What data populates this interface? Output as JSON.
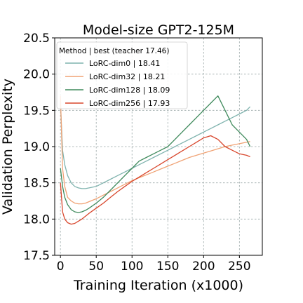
{
  "chart_data": {
    "type": "line",
    "title": "Model-size GPT2-125M",
    "xlabel": "Training Iteration (x1000)",
    "ylabel": "Validation Perplexity",
    "xlim": [
      -8,
      282
    ],
    "ylim": [
      17.5,
      20.5
    ],
    "xticks": [
      0,
      50,
      100,
      150,
      200,
      250
    ],
    "yticks": [
      17.5,
      18.0,
      18.5,
      19.0,
      19.5,
      20.0,
      20.5
    ],
    "grid": true,
    "legend": {
      "title": "Method | best (teacher 17.46)",
      "placement": "top-left"
    },
    "series": [
      {
        "name": "LoRC-dim0 | 18.41",
        "color": "#7fb3ae",
        "x": [
          0,
          3,
          6,
          10,
          15,
          20,
          25,
          30,
          35,
          40,
          50,
          60,
          70,
          80,
          90,
          100,
          110,
          120,
          130,
          140,
          150,
          160,
          170,
          180,
          190,
          200,
          210,
          220,
          230,
          240,
          250,
          260,
          265
        ],
        "y": [
          19.6,
          18.95,
          18.75,
          18.6,
          18.5,
          18.45,
          18.43,
          18.42,
          18.42,
          18.43,
          18.45,
          18.5,
          18.55,
          18.6,
          18.65,
          18.7,
          18.75,
          18.8,
          18.85,
          18.9,
          18.95,
          19.0,
          19.05,
          19.1,
          19.15,
          19.2,
          19.25,
          19.3,
          19.35,
          19.4,
          19.45,
          19.5,
          19.55
        ]
      },
      {
        "name": "LoRC-dim32 | 18.21",
        "color": "#f0a274",
        "x": [
          0,
          3,
          6,
          10,
          15,
          20,
          25,
          30,
          35,
          40,
          50,
          60,
          70,
          80,
          90,
          100,
          110,
          120,
          130,
          140,
          150,
          160,
          170,
          180,
          190,
          200,
          210,
          220,
          230,
          240,
          250,
          260,
          265
        ],
        "y": [
          19.7,
          18.7,
          18.45,
          18.3,
          18.25,
          18.22,
          18.21,
          18.21,
          18.22,
          18.24,
          18.28,
          18.33,
          18.38,
          18.43,
          18.48,
          18.53,
          18.57,
          18.61,
          18.65,
          18.69,
          18.73,
          18.77,
          18.81,
          18.85,
          18.88,
          18.91,
          18.94,
          18.97,
          19.0,
          19.02,
          19.04,
          19.06,
          19.07
        ]
      },
      {
        "name": "LoRC-dim128 | 18.09",
        "color": "#3f8a5c",
        "x": [
          0,
          3,
          6,
          10,
          15,
          20,
          25,
          30,
          35,
          40,
          50,
          60,
          70,
          80,
          90,
          100,
          110,
          120,
          130,
          140,
          150,
          160,
          170,
          180,
          190,
          200,
          210,
          220,
          230,
          240,
          250,
          260,
          265
        ],
        "y": [
          18.7,
          18.45,
          18.3,
          18.2,
          18.13,
          18.1,
          18.09,
          18.1,
          18.12,
          18.15,
          18.22,
          18.3,
          18.4,
          18.5,
          18.6,
          18.7,
          18.8,
          18.85,
          18.9,
          18.95,
          19.0,
          19.1,
          19.2,
          19.3,
          19.4,
          19.5,
          19.6,
          19.7,
          19.5,
          19.3,
          19.2,
          19.1,
          19.0
        ]
      },
      {
        "name": "LoRC-dim256 | 17.93",
        "color": "#d8462c",
        "x": [
          0,
          3,
          6,
          10,
          15,
          20,
          25,
          30,
          35,
          40,
          50,
          60,
          70,
          80,
          90,
          100,
          110,
          120,
          130,
          140,
          150,
          160,
          170,
          180,
          190,
          200,
          210,
          220,
          230,
          240,
          250,
          260,
          265
        ],
        "y": [
          18.5,
          18.1,
          18.0,
          17.95,
          17.93,
          17.94,
          17.97,
          18.0,
          18.04,
          18.08,
          18.15,
          18.22,
          18.3,
          18.38,
          18.45,
          18.52,
          18.58,
          18.64,
          18.7,
          18.76,
          18.82,
          18.88,
          18.94,
          19.0,
          19.06,
          19.12,
          19.15,
          19.1,
          19.0,
          18.95,
          18.9,
          18.88,
          18.86
        ]
      }
    ]
  }
}
